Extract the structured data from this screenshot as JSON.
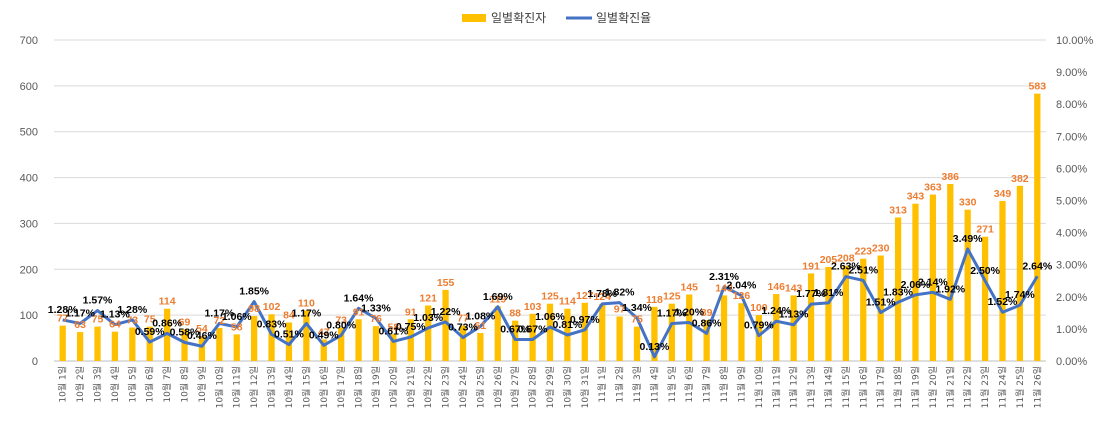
{
  "chart_data": {
    "type": "bar+line",
    "legend": {
      "position": "top",
      "bar_series_name": "일별확진자",
      "line_series_name": "일별확진율"
    },
    "colors": {
      "bar": "#FFC000",
      "line": "#4472C4",
      "bar_label": "#ED7D31",
      "line_label": "#000000",
      "grid": "#D9D9D9",
      "axis_text": "#595959"
    },
    "grid": true,
    "y_left": {
      "min": 0,
      "max": 700,
      "step": 100,
      "ticks": [
        "0",
        "100",
        "200",
        "300",
        "400",
        "500",
        "600",
        "700"
      ]
    },
    "y_right": {
      "min": 0,
      "max": 10,
      "step": 1,
      "ticks": [
        "0.00%",
        "1.00%",
        "2.00%",
        "3.00%",
        "4.00%",
        "5.00%",
        "6.00%",
        "7.00%",
        "8.00%",
        "9.00%",
        "10.00%"
      ]
    },
    "categories": [
      "10월 1일",
      "10월 2일",
      "10월 3일",
      "10월 4일",
      "10월 5일",
      "10월 6일",
      "10월 7일",
      "10월 8일",
      "10월 9일",
      "10월 10일",
      "10월 11일",
      "10월 12일",
      "10월 13일",
      "10월 14일",
      "10월 15일",
      "10월 16일",
      "10월 17일",
      "10월 18일",
      "10월 19일",
      "10월 20일",
      "10월 21일",
      "10월 22일",
      "10월 23일",
      "10월 24일",
      "10월 25일",
      "10월 26일",
      "10월 27일",
      "10월 28일",
      "10월 29일",
      "10월 30일",
      "10월 31일",
      "11월 1일",
      "11월 2일",
      "11월 3일",
      "11월 4일",
      "11월 5일",
      "11월 6일",
      "11월 7일",
      "11월 8일",
      "11월 9일",
      "11월 10일",
      "11월 11일",
      "11월 12일",
      "11월 13일",
      "11월 14일",
      "11월 15일",
      "11월 16일",
      "11월 17일",
      "11월 18일",
      "11월 19일",
      "11월 20일",
      "11월 21일",
      "11월 22일",
      "11월 23일",
      "11월 24일",
      "11월 25일",
      "11월 26일"
    ],
    "bar_values": [
      77,
      63,
      75,
      64,
      73,
      75,
      114,
      69,
      54,
      72,
      58,
      98,
      102,
      84,
      110,
      47,
      73,
      91,
      76,
      58,
      91,
      121,
      155,
      77,
      61,
      119,
      88,
      103,
      125,
      114,
      127,
      124,
      97,
      75,
      118,
      125,
      145,
      89,
      143,
      126,
      100,
      146,
      143,
      191,
      205,
      208,
      223,
      230,
      313,
      343,
      363,
      386,
      330,
      271,
      349,
      382,
      583
    ],
    "bar_labels": [
      "77",
      "63",
      "75",
      "64",
      "73",
      "75",
      "114",
      "69",
      "54",
      "72",
      "58",
      "98",
      "102",
      "84",
      "110",
      "47",
      "73",
      "91",
      "76",
      "58",
      "91",
      "121",
      "155",
      "77",
      "61",
      "119",
      "88",
      "103",
      "125",
      "114",
      "127",
      "124",
      "97",
      "75",
      "118",
      "125",
      "145",
      "89",
      "143",
      "126",
      "100",
      "146",
      "143",
      "191",
      "205",
      "208",
      "223",
      "230",
      "313",
      "343",
      "363",
      "386",
      "330",
      "271",
      "349",
      "382",
      "583"
    ],
    "line_values": [
      1.28,
      1.17,
      1.57,
      1.13,
      1.28,
      0.59,
      0.86,
      0.58,
      0.46,
      1.17,
      1.06,
      1.85,
      0.83,
      0.51,
      1.17,
      0.49,
      0.8,
      1.64,
      1.33,
      0.61,
      0.75,
      1.03,
      1.22,
      0.73,
      1.08,
      1.69,
      0.67,
      0.67,
      1.06,
      0.81,
      0.97,
      1.78,
      1.82,
      1.34,
      0.13,
      1.17,
      1.2,
      0.86,
      2.31,
      2.04,
      0.79,
      1.24,
      1.13,
      1.77,
      1.81,
      2.63,
      2.51,
      1.51,
      1.83,
      2.06,
      2.14,
      1.92,
      3.49,
      2.5,
      1.52,
      1.74,
      2.64
    ],
    "line_labels": [
      "1.28%",
      "1.17%",
      "1.57%",
      "1.13%",
      "1.28%",
      "0.59%",
      "0.86%",
      "0.58%",
      "0.46%",
      "1.17%",
      "1.06%",
      "1.85%",
      "0.83%",
      "0.51%",
      "1.17%",
      "0.49%",
      "0.80%",
      "1.64%",
      "1.33%",
      "0.61%",
      "0.75%",
      "1.03%",
      "1.22%",
      "0.73%",
      "1.08%",
      "1.69%",
      "0.67%",
      "0.67%",
      "1.06%",
      "0.81%",
      "0.97%",
      "1.78%",
      "1.82%",
      "1.34%",
      "0.13%",
      "1.17%",
      "1.20%",
      "0.86%",
      "2.31%",
      "2.04%",
      "0.79%",
      "1.24%",
      "1.13%",
      "1.77%",
      "1.81%",
      "2.63%",
      "2.51%",
      "1.51%",
      "1.83%",
      "2.06%",
      "2.14%",
      "1.92%",
      "3.49%",
      "2.50%",
      "1.52%",
      "1.74%",
      "2.64%"
    ]
  }
}
